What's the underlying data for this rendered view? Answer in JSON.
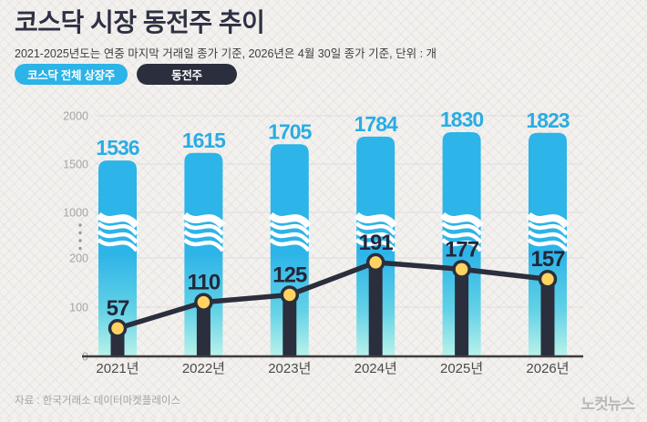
{
  "header": {
    "title": {
      "regular": "코스닥 시장 ",
      "bold": "동전주 추이"
    },
    "subtitle": "2021-2025년도는 연중 마지막 거래일 종가 기준, 2026년은 4월 30일 종가 기준, 단위 : 개",
    "legend": [
      {
        "label": "코스닥 전체 상장주",
        "color": "#2cb3e7"
      },
      {
        "label": "동전주",
        "color": "#2a2e3d"
      }
    ]
  },
  "chart_data": {
    "type": "bar",
    "title": "코스닥 시장 동전주 추이",
    "categories": [
      "2021년",
      "2022년",
      "2023년",
      "2024년",
      "2025년",
      "2026년"
    ],
    "series": [
      {
        "name": "코스닥 전체 상장주",
        "type": "bar",
        "color": "#2db4e8",
        "color_bottom": "#b9f2ea",
        "label_color": "#29ade3",
        "values": [
          1536,
          1615,
          1705,
          1784,
          1830,
          1823
        ]
      },
      {
        "name": "동전주",
        "type": "bar+line",
        "color": "#2a2e3d",
        "marker_color": "#ffd35f",
        "label_color": "#23273a",
        "values": [
          57,
          110,
          125,
          191,
          177,
          157
        ]
      }
    ],
    "y_axis": {
      "broken_axis": true,
      "upper_ticks": [
        1000,
        1500,
        2000
      ],
      "lower_ticks": [
        0,
        100,
        200
      ],
      "upper_range": [
        1000,
        2000
      ],
      "lower_range": [
        0,
        200
      ]
    },
    "grid": true,
    "legend_position": "top-left",
    "unit": "개"
  },
  "footer": {
    "source": "자료 : 한국거래소 데이터마켓플레이스",
    "logo": "노컷뉴스"
  }
}
